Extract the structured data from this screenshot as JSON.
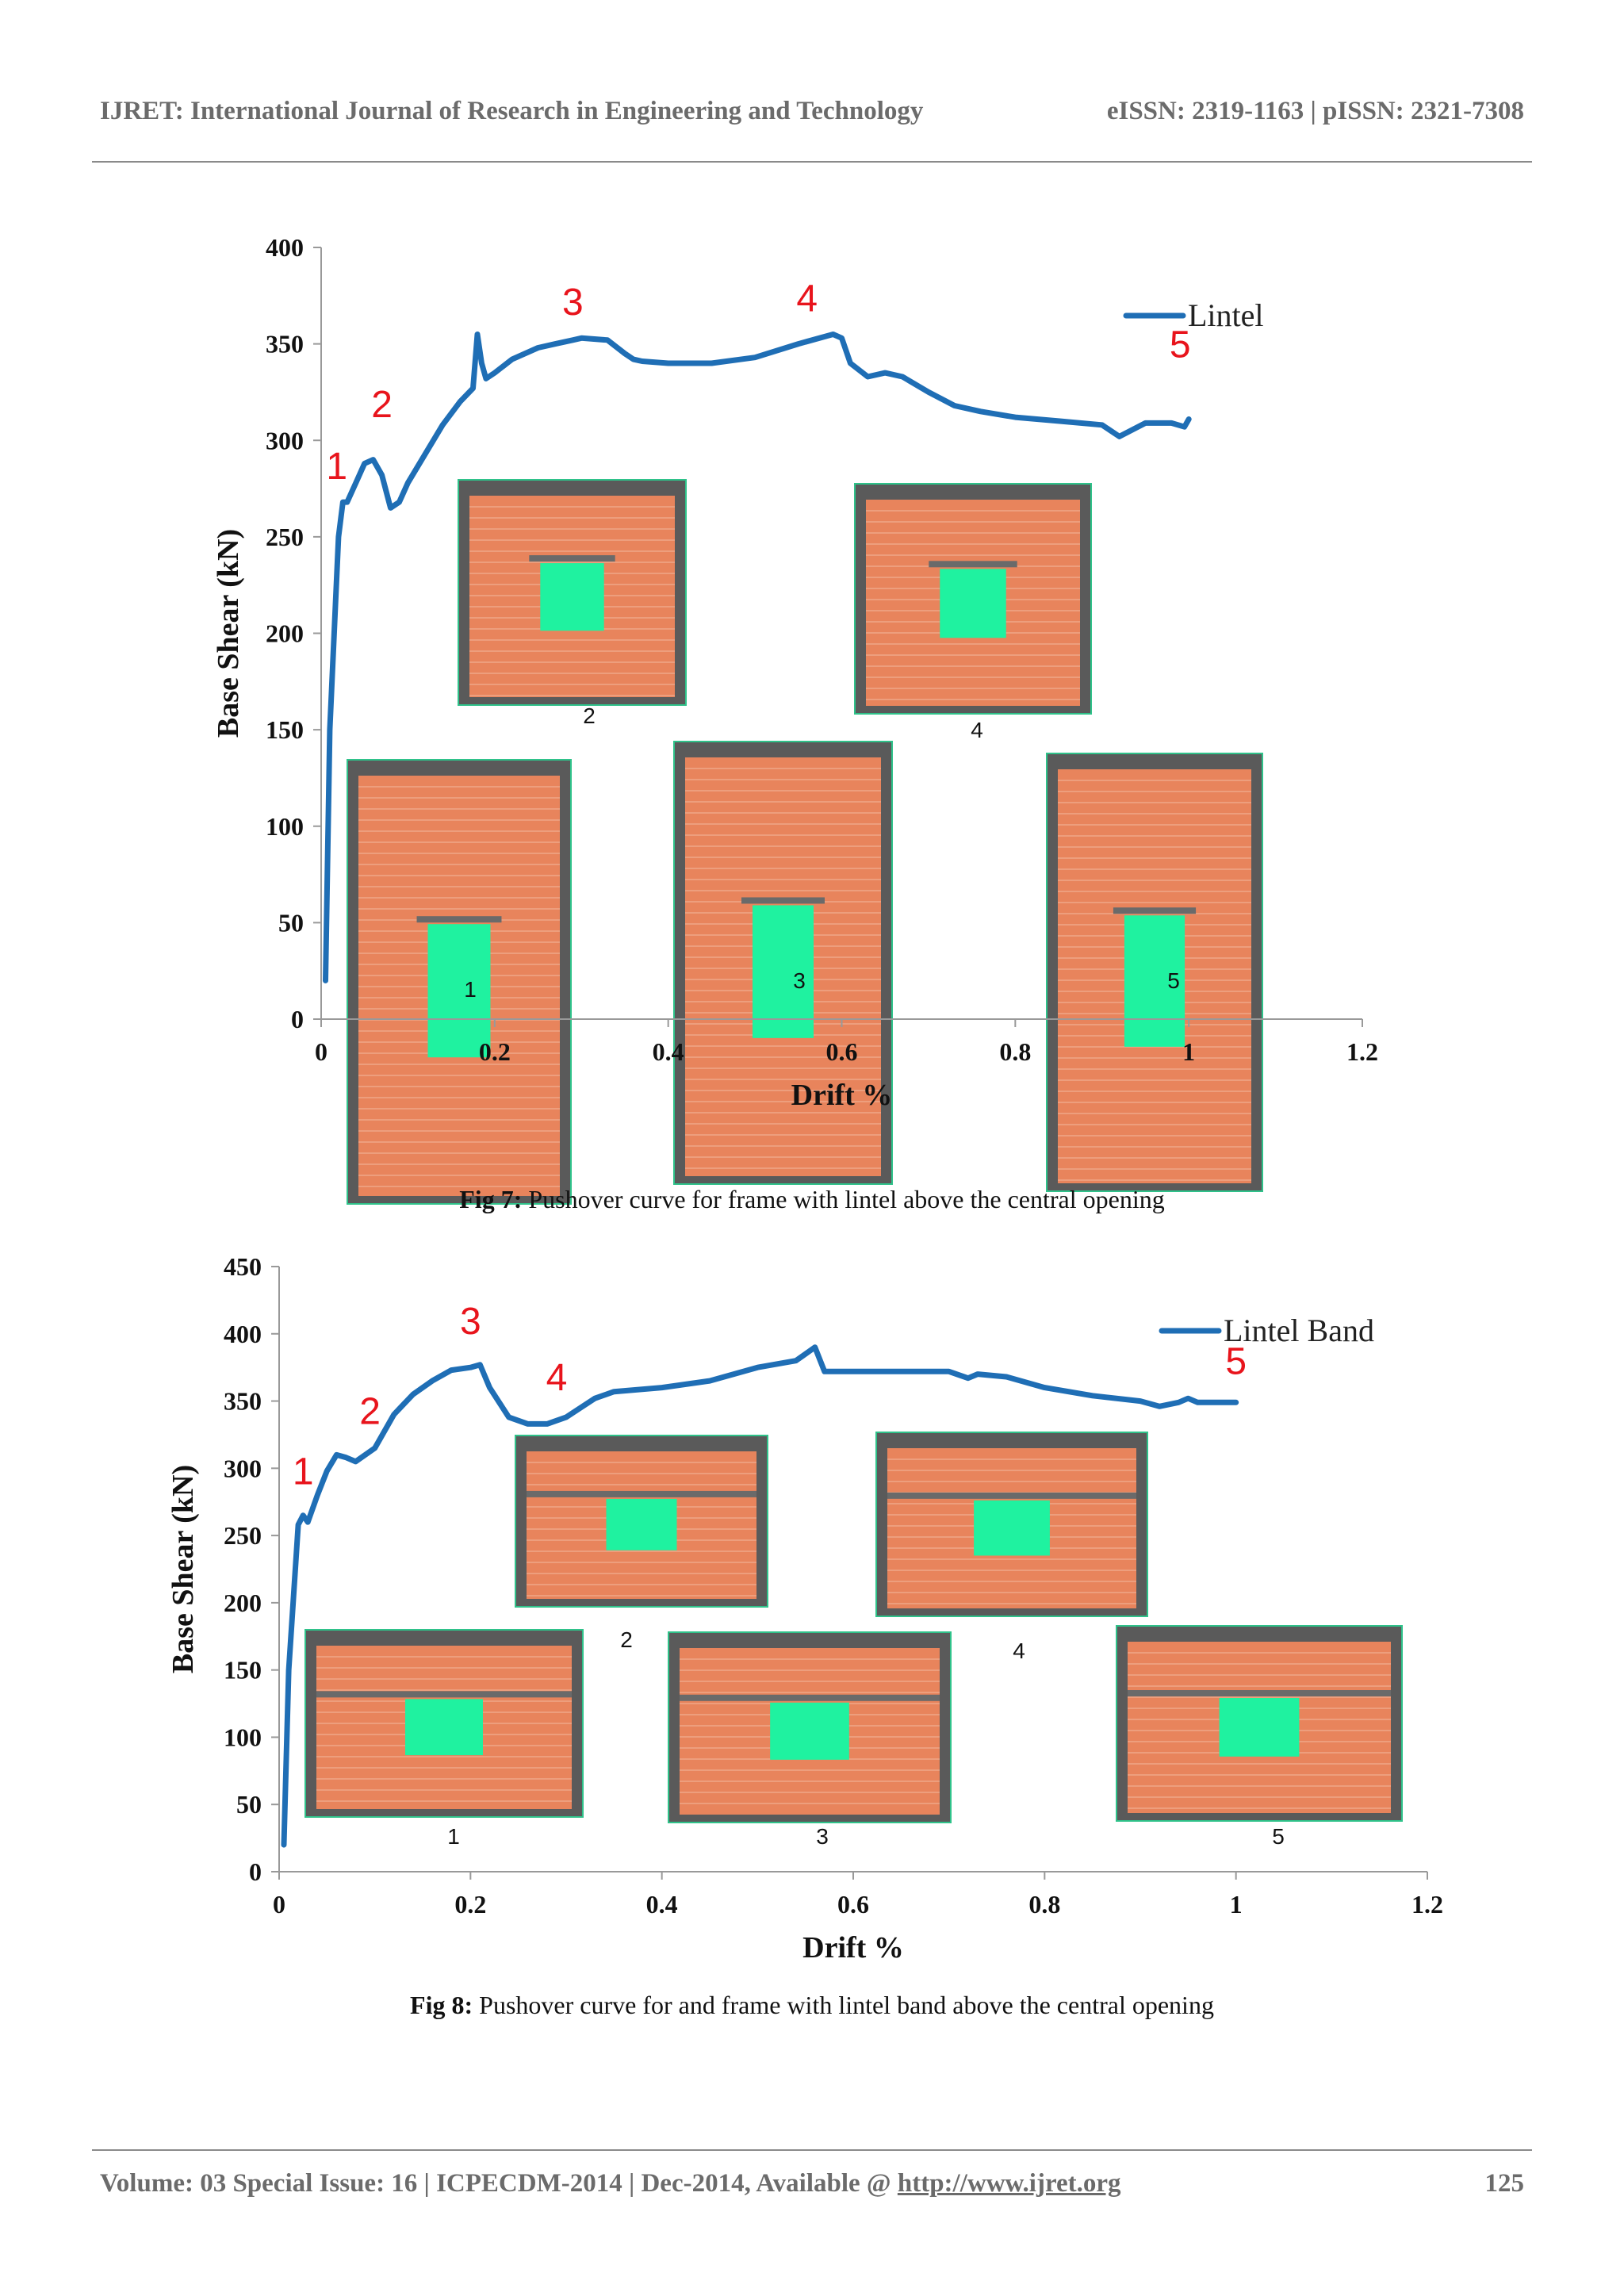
{
  "header": {
    "journal": "IJRET: International Journal of Research in Engineering and Technology",
    "issn": "eISSN: 2319-1163 | pISSN: 2321-7308"
  },
  "colors": {
    "curve": "#1f6eb5",
    "brick": "#e8845c",
    "opening": "#1ff2a0",
    "stage": "#e8141c"
  },
  "fig7": {
    "caption_label": "Fig 7:",
    "caption_text": " Pushover curve for frame with lintel above the central opening",
    "chart_data": {
      "type": "line",
      "title": "",
      "xlabel": "Drift %",
      "ylabel": "Base Shear (kN)",
      "xlim": [
        0,
        1.2
      ],
      "ylim": [
        0,
        400
      ],
      "xticks": [
        "0",
        "0.2",
        "0.4",
        "0.6",
        "0.8",
        "1",
        "1.2"
      ],
      "yticks": [
        "0",
        "50",
        "100",
        "150",
        "200",
        "250",
        "300",
        "350",
        "400"
      ],
      "series": [
        {
          "name": "Lintel",
          "x": [
            0.005,
            0.01,
            0.02,
            0.025,
            0.03,
            0.04,
            0.05,
            0.06,
            0.07,
            0.08,
            0.09,
            0.1,
            0.12,
            0.14,
            0.16,
            0.175,
            0.18,
            0.185,
            0.19,
            0.2,
            0.22,
            0.25,
            0.27,
            0.29,
            0.3,
            0.33,
            0.35,
            0.36,
            0.37,
            0.4,
            0.45,
            0.5,
            0.55,
            0.59,
            0.6,
            0.61,
            0.63,
            0.65,
            0.67,
            0.7,
            0.73,
            0.76,
            0.8,
            0.85,
            0.9,
            0.92,
            0.95,
            0.98,
            0.995,
            1.0
          ],
          "y": [
            20,
            150,
            250,
            268,
            268,
            278,
            288,
            290,
            282,
            265,
            268,
            278,
            293,
            308,
            320,
            327,
            355,
            340,
            332,
            335,
            342,
            348,
            350,
            352,
            353,
            352,
            345,
            342,
            341,
            340,
            340,
            343,
            350,
            355,
            353,
            340,
            333,
            335,
            333,
            325,
            318,
            315,
            312,
            310,
            308,
            302,
            309,
            309,
            307,
            311
          ]
        }
      ],
      "stage_markers": [
        {
          "label": "1",
          "x": 0.018,
          "y": 280
        },
        {
          "label": "2",
          "x": 0.07,
          "y": 312
        },
        {
          "label": "3",
          "x": 0.29,
          "y": 365
        },
        {
          "label": "4",
          "x": 0.56,
          "y": 367
        },
        {
          "label": "5",
          "x": 0.99,
          "y": 343
        }
      ],
      "legend": "top-right",
      "grid": false
    },
    "insets": [
      "1",
      "2",
      "3",
      "4",
      "5"
    ]
  },
  "fig8": {
    "caption_label": "Fig 8:",
    "caption_text": " Pushover curve for and frame with lintel band above the central opening",
    "chart_data": {
      "type": "line",
      "title": "",
      "xlabel": "Drift %",
      "ylabel": "Base Shear (kN)",
      "xlim": [
        0,
        1.2
      ],
      "ylim": [
        0,
        450
      ],
      "xticks": [
        "0",
        "0.2",
        "0.4",
        "0.6",
        "0.8",
        "1",
        "1.2"
      ],
      "yticks": [
        "0",
        "50",
        "100",
        "150",
        "200",
        "250",
        "300",
        "350",
        "400",
        "450"
      ],
      "series": [
        {
          "name": "Lintel Band",
          "x": [
            0.005,
            0.01,
            0.02,
            0.025,
            0.03,
            0.04,
            0.05,
            0.06,
            0.07,
            0.08,
            0.1,
            0.12,
            0.14,
            0.16,
            0.18,
            0.2,
            0.21,
            0.22,
            0.24,
            0.26,
            0.28,
            0.3,
            0.33,
            0.35,
            0.4,
            0.45,
            0.5,
            0.54,
            0.55,
            0.56,
            0.57,
            0.6,
            0.65,
            0.7,
            0.72,
            0.73,
            0.76,
            0.8,
            0.85,
            0.9,
            0.92,
            0.94,
            0.95,
            0.96,
            1.0
          ],
          "y": [
            20,
            150,
            258,
            265,
            260,
            280,
            298,
            310,
            308,
            305,
            315,
            340,
            355,
            365,
            373,
            375,
            377,
            360,
            338,
            333,
            333,
            338,
            352,
            357,
            360,
            365,
            375,
            380,
            385,
            390,
            372,
            372,
            372,
            372,
            367,
            370,
            368,
            360,
            354,
            350,
            346,
            349,
            352,
            349,
            349
          ]
        }
      ],
      "stage_markers": [
        {
          "label": "1",
          "x": 0.025,
          "y": 288
        },
        {
          "label": "2",
          "x": 0.095,
          "y": 333
        },
        {
          "label": "3",
          "x": 0.2,
          "y": 400
        },
        {
          "label": "4",
          "x": 0.29,
          "y": 358
        },
        {
          "label": "5",
          "x": 1.0,
          "y": 370
        }
      ],
      "legend": "top-right",
      "grid": false
    },
    "insets": [
      "1",
      "2",
      "3",
      "4",
      "5"
    ]
  },
  "footer": {
    "volume": "Volume: 03 Special Issue: 16 | ICPECDM-2014 | Dec-2014, Available @ ",
    "url": "http://www.ijret.org",
    "page": "125"
  }
}
